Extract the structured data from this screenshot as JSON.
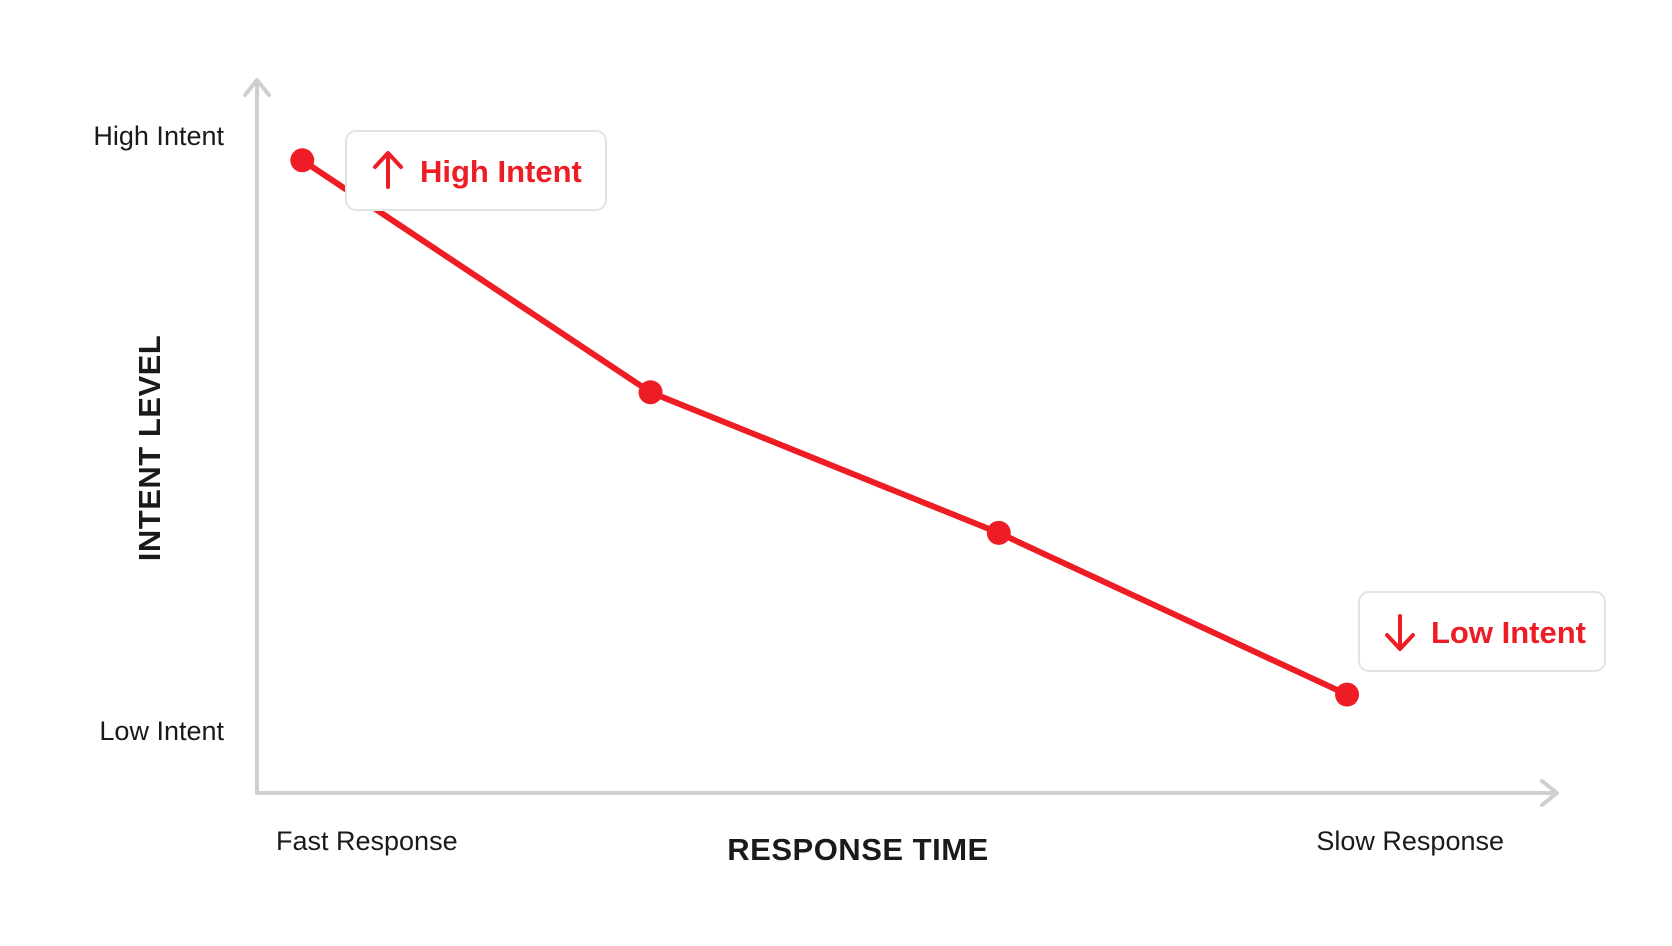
{
  "chart_data": {
    "type": "line",
    "title": "",
    "xlabel": "RESPONSE TIME",
    "ylabel": "INTENT LEVEL",
    "x_tick_labels": {
      "start": "Fast Response",
      "end": "Slow Response"
    },
    "y_tick_labels": {
      "top": "High Intent",
      "bottom": "Low Intent"
    },
    "x": [
      0,
      1,
      2,
      3
    ],
    "xlim": [
      -0.13,
      3.6
    ],
    "ylim": [
      0,
      1
    ],
    "series": [
      {
        "values": [
          0.9,
          0.57,
          0.37,
          0.14
        ],
        "color": "#ee1c24"
      }
    ],
    "annotations": [
      {
        "text": "High Intent",
        "direction": "up",
        "anchor_point": 0,
        "placement": "upper-right"
      },
      {
        "text": "Low Intent",
        "direction": "down",
        "anchor_point": 3,
        "placement": "right"
      }
    ],
    "grid": false,
    "legend": "none",
    "colors": {
      "accent": "#ee1c24",
      "axis": "#cfcfcf",
      "text": "#1a1a1a",
      "callout_border": "#e3e3e3"
    }
  }
}
